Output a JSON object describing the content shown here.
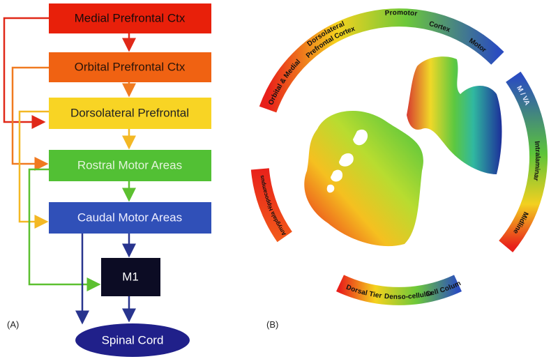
{
  "panel_a": {
    "label": "(A)",
    "boxes": [
      "Medial Prefrontal Ctx",
      "Orbital Prefrontal Ctx",
      "Dorsolateral Prefrontal",
      "Rostral Motor Areas",
      "Caudal Motor Areas"
    ],
    "m1": "M1",
    "spinal_cord": "Spinal Cord"
  },
  "panel_b": {
    "label": "(B)",
    "cortex_arc": [
      "Orbital & Medial",
      "Dorsolateral",
      "Prefrontal Cortex",
      "Promotor",
      "Cortex",
      "Motor"
    ],
    "thalamus_arc": [
      "M / VA",
      "Intralaminar",
      "Midline"
    ],
    "midbrain_arc": [
      "Dorsal Tier",
      "Denso-cellular",
      "Cell Columns"
    ],
    "limbic_arc": [
      "Amygdala Hippocampus"
    ]
  }
}
